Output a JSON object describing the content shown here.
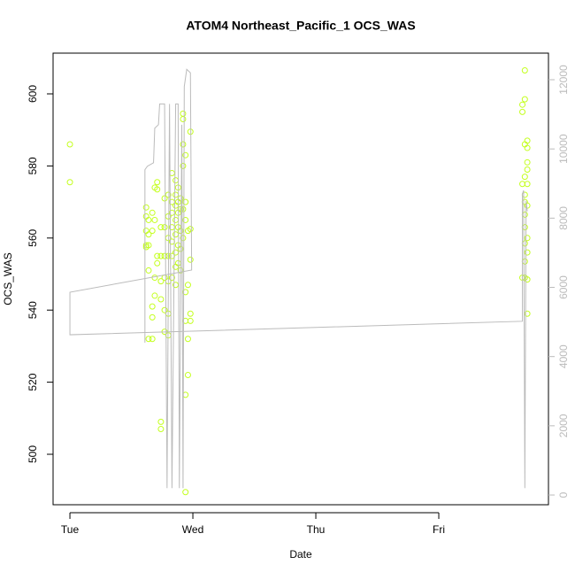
{
  "chart_data": {
    "type": "scatter",
    "title": "ATOM4 Northeast_Pacific_1 OCS_WAS",
    "x_label": "Date",
    "y_label": "OCS_WAS",
    "xlim": [
      -0.137,
      3.892
    ],
    "xticks": [
      {
        "value": 0,
        "label": "Tue"
      },
      {
        "value": 1,
        "label": "Wed"
      },
      {
        "value": 2,
        "label": "Thu"
      },
      {
        "value": 3,
        "label": "Fri"
      }
    ],
    "ylim": [
      486,
      611.3
    ],
    "yticks": [
      500,
      520,
      540,
      560,
      580,
      600
    ],
    "y2lim": [
      -281,
      12768
    ],
    "y2ticks": [
      0,
      2000,
      4000,
      6000,
      8000,
      10000,
      12000
    ],
    "series": [
      {
        "type": "scatter",
        "color": "#c4ff1e",
        "x": [
          0,
          0,
          0.62,
          0.62,
          0.62,
          0.62,
          0.62,
          0.64,
          0.64,
          0.64,
          0.64,
          0.64,
          0.67,
          0.67,
          0.67,
          0.67,
          0.67,
          0.69,
          0.69,
          0.69,
          0.69,
          0.71,
          0.71,
          0.71,
          0.71,
          0.74,
          0.74,
          0.74,
          0.74,
          0.74,
          0.74,
          0.77,
          0.77,
          0.77,
          0.77,
          0.77,
          0.77,
          0.8,
          0.8,
          0.8,
          0.8,
          0.8,
          0.8,
          0.8,
          0.83,
          0.83,
          0.83,
          0.83,
          0.83,
          0.83,
          0.83,
          0.86,
          0.86,
          0.86,
          0.86,
          0.86,
          0.86,
          0.86,
          0.86,
          0.88,
          0.88,
          0.88,
          0.88,
          0.88,
          0.88,
          0.9,
          0.9,
          0.9,
          0.9,
          0.9,
          0.92,
          0.92,
          0.92,
          0.92,
          0.92,
          0.92,
          0.94,
          0.94,
          0.94,
          0.94,
          0.94,
          0.94,
          0.94,
          0.96,
          0.96,
          0.96,
          0.96,
          0.98,
          0.98,
          0.98,
          0.98,
          0.98,
          3.68,
          3.68,
          3.68,
          3.68,
          3.7,
          3.7,
          3.7,
          3.7,
          3.7,
          3.7,
          3.7,
          3.7,
          3.7,
          3.7,
          3.7,
          3.72,
          3.72,
          3.72,
          3.72,
          3.72,
          3.72,
          3.72,
          3.72,
          3.72,
          3.72
        ],
        "values": [
          586,
          575.5,
          568.5,
          566,
          562,
          558,
          557.5,
          565,
          561,
          558,
          551,
          532,
          567,
          562,
          541,
          538,
          532,
          574,
          565,
          549,
          544,
          575.5,
          573.5,
          555,
          553,
          563,
          555,
          548,
          543,
          509,
          507,
          571,
          563,
          555,
          549,
          540,
          534,
          572,
          566,
          560,
          555,
          548,
          539,
          533,
          578,
          570,
          567,
          563,
          559,
          555,
          549,
          576,
          572,
          569,
          565,
          561,
          556,
          552,
          547,
          574,
          570,
          567,
          563,
          558,
          553,
          571,
          568,
          562,
          557,
          551,
          594.5,
          593,
          586,
          580,
          568,
          560,
          583,
          570,
          565,
          545,
          537,
          516.5,
          489.5,
          562,
          547,
          532,
          522,
          589.5,
          562.5,
          554,
          539,
          537,
          597,
          595,
          575,
          549,
          606.5,
          598.5,
          586,
          577,
          572,
          570,
          566.5,
          563,
          558.5,
          553.5,
          549,
          587,
          585,
          581,
          579,
          575,
          569,
          560,
          556,
          548.5,
          539
        ]
      },
      {
        "type": "line",
        "color": "#bbbbbb",
        "axis": "y2",
        "x": [
          0.61,
          0.61,
          0.63,
          0.68,
          0.69,
          0.72,
          0.73,
          0.77,
          0.79,
          0.81,
          0.83,
          0.86,
          0.88,
          0.89,
          0.91,
          0.92,
          0.93,
          0.95,
          0.98,
          0.99,
          0,
          0,
          3.68,
          3.68,
          3.69,
          3.7,
          3.71,
          3.72
        ],
        "values": [
          4400,
          9400,
          9500,
          9600,
          10600,
          10700,
          11300,
          11300,
          200,
          11300,
          200,
          11300,
          11300,
          200,
          10700,
          200,
          11800,
          12300,
          12200,
          6500,
          5860,
          4630,
          5020,
          8700,
          8800,
          200,
          8500,
          8200
        ]
      }
    ]
  }
}
